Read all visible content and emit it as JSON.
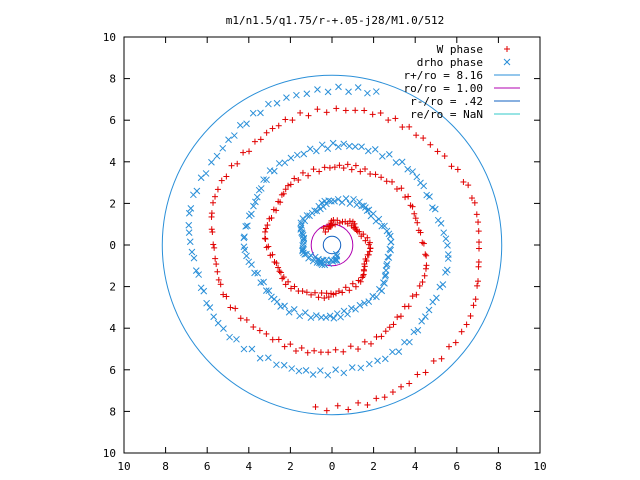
{
  "chart_data": {
    "type": "scatter",
    "title": "m1/n1.5/q1.75/r-+.05-j28/M1.0/512",
    "xlim": [
      -10,
      10
    ],
    "ylim": [
      -10,
      10
    ],
    "x_ticks": [
      -10,
      -8,
      -6,
      -4,
      -2,
      0,
      2,
      4,
      6,
      8,
      10
    ],
    "y_ticks": [
      -10,
      -8,
      -6,
      -4,
      -2,
      0,
      2,
      4,
      6,
      8,
      10
    ],
    "x_tick_labels": [
      "10",
      "8",
      "6",
      "4",
      "2",
      "0",
      "2",
      "4",
      "6",
      "8",
      "10"
    ],
    "y_tick_labels": [
      "10",
      "8",
      "6",
      "4",
      "2",
      "0",
      "2",
      "4",
      "6",
      "8",
      "10"
    ],
    "grid": false,
    "legend_position": "top-right",
    "colors": {
      "w_phase": "#e00000",
      "drho_phase": "#2a8fd8",
      "r_plus": "#2a8fd8",
      "r_o": "#b000b0",
      "r_minus": "#1060c0",
      "r_e": "#30c8c8"
    },
    "series": [
      {
        "name": "W phase",
        "marker": "plus",
        "spiral": {
          "r_start": 0.8,
          "r_end": 7.9,
          "theta_start_deg": 120,
          "turns": 2.6,
          "n": 260
        }
      },
      {
        "name": "drho phase",
        "marker": "cross",
        "spiral": {
          "r_start": 0.6,
          "r_end": 7.6,
          "theta_start_deg": -70,
          "turns": 2.6,
          "n": 260
        }
      }
    ],
    "circles": [
      {
        "name": "r+/ro = 8.16",
        "radius": 8.16
      },
      {
        "name": "ro/ro = 1.00",
        "radius": 1.0
      },
      {
        "name": "r-/ro = .42",
        "radius": 0.42
      },
      {
        "name": "re/ro = NaN",
        "radius": null
      }
    ]
  }
}
